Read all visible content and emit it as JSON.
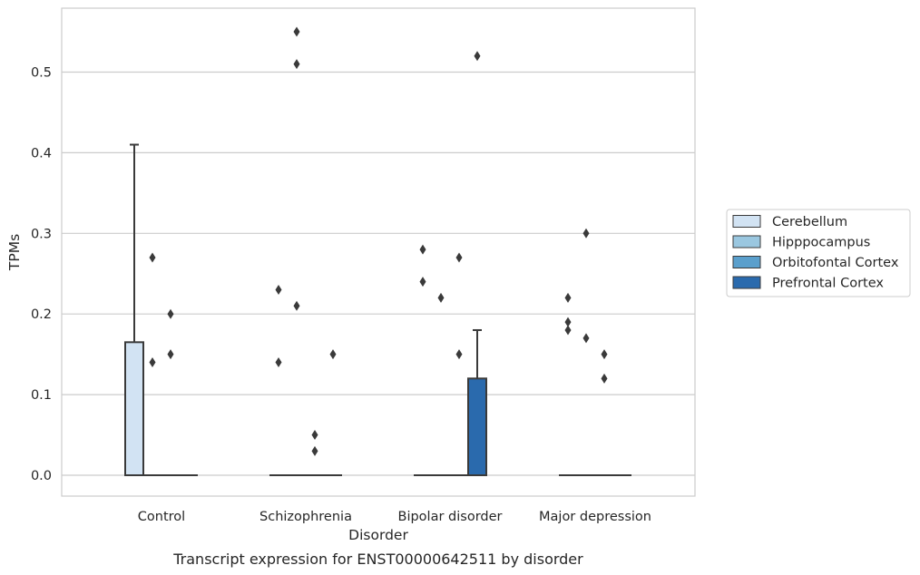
{
  "chart_data": {
    "type": "box",
    "caption": "Transcript expression for ENST00000642511 by disorder",
    "xlabel": "Disorder",
    "ylabel": "TPMs",
    "ylim": [
      -0.027,
      0.58
    ],
    "yticks": [
      "0.0",
      "0.1",
      "0.2",
      "0.3",
      "0.4",
      "0.5"
    ],
    "ytick_values": [
      0,
      0.1,
      0.2,
      0.3,
      0.4,
      0.5
    ],
    "grid": "horizontal",
    "legend_position": "right",
    "categories": [
      "Control",
      "Schizophrenia",
      "Bipolar disorder",
      "Major depression"
    ],
    "series": [
      {
        "name": "Cerebellum",
        "color": "#d2e3f3",
        "boxes": [
          {
            "q1": 0,
            "median": 0,
            "q3": 0.165,
            "whisker_low": 0,
            "whisker_high": 0.41,
            "outliers": []
          },
          {
            "q1": 0,
            "median": 0,
            "q3": 0,
            "whisker_low": 0,
            "whisker_high": 0,
            "outliers": [
              0.23,
              0.14
            ]
          },
          {
            "q1": 0,
            "median": 0,
            "q3": 0,
            "whisker_low": 0,
            "whisker_high": 0,
            "outliers": [
              0.28,
              0.24
            ]
          },
          {
            "q1": 0,
            "median": 0,
            "q3": 0,
            "whisker_low": 0,
            "whisker_high": 0,
            "outliers": [
              0.22,
              0.19,
              0.18
            ]
          }
        ]
      },
      {
        "name": "Hipppocampus",
        "color": "#9ac7e0",
        "boxes": [
          {
            "q1": 0,
            "median": 0,
            "q3": 0,
            "whisker_low": 0,
            "whisker_high": 0,
            "outliers": [
              0.27,
              0.14
            ]
          },
          {
            "q1": 0,
            "median": 0,
            "q3": 0,
            "whisker_low": 0,
            "whisker_high": 0,
            "outliers": [
              0.55,
              0.51,
              0.21
            ]
          },
          {
            "q1": 0,
            "median": 0,
            "q3": 0,
            "whisker_low": 0,
            "whisker_high": 0,
            "outliers": [
              0.22
            ]
          },
          {
            "q1": 0,
            "median": 0,
            "q3": 0,
            "whisker_low": 0,
            "whisker_high": 0,
            "outliers": [
              0.3,
              0.17
            ]
          }
        ]
      },
      {
        "name": "Orbitofontal Cortex",
        "color": "#5a9fcc",
        "boxes": [
          {
            "q1": 0,
            "median": 0,
            "q3": 0,
            "whisker_low": 0,
            "whisker_high": 0,
            "outliers": [
              0.2,
              0.15
            ]
          },
          {
            "q1": 0,
            "median": 0,
            "q3": 0,
            "whisker_low": 0,
            "whisker_high": 0,
            "outliers": [
              0.05,
              0.03
            ]
          },
          {
            "q1": 0,
            "median": 0,
            "q3": 0,
            "whisker_low": 0,
            "whisker_high": 0,
            "outliers": [
              0.27,
              0.15
            ]
          },
          {
            "q1": 0,
            "median": 0,
            "q3": 0,
            "whisker_low": 0,
            "whisker_high": 0,
            "outliers": [
              0.15,
              0.12
            ]
          }
        ]
      },
      {
        "name": "Prefrontal Cortex",
        "color": "#2a6aad",
        "boxes": [
          {
            "q1": 0,
            "median": 0,
            "q3": 0,
            "whisker_low": 0,
            "whisker_high": 0,
            "outliers": []
          },
          {
            "q1": 0,
            "median": 0,
            "q3": 0,
            "whisker_low": 0,
            "whisker_high": 0,
            "outliers": [
              0.15
            ]
          },
          {
            "q1": 0,
            "median": 0,
            "q3": 0.12,
            "whisker_low": 0,
            "whisker_high": 0.18,
            "outliers": [
              0.52
            ]
          },
          {
            "q1": 0,
            "median": 0,
            "q3": 0,
            "whisker_low": 0,
            "whisker_high": 0,
            "outliers": []
          }
        ]
      }
    ]
  }
}
